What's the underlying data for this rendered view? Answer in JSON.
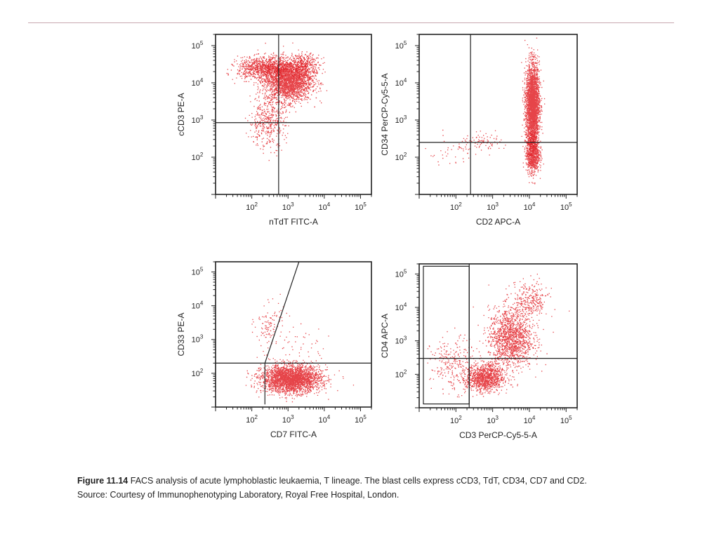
{
  "caption": {
    "label": "Figure 11.14",
    "text": "FACS analysis of acute lymphoblastic leukaemia, T lineage. The blast cells express cCD3, TdT, CD34, CD7 and CD2.",
    "source": "Source: Courtesy of Immunophenotyping Laboratory, Royal Free Hospital, London."
  },
  "colors": {
    "events": "#e0151b",
    "gate": "#222222",
    "frame": "#222222"
  },
  "chart_data": [
    {
      "type": "scatter",
      "xlabel": "nTdT FITC-A",
      "ylabel": "cCD3 PE-A",
      "xscale": "log",
      "yscale": "log",
      "xlim": [
        10,
        200000
      ],
      "ylim": [
        10,
        200000
      ],
      "xticks": [
        {
          "v": 100,
          "e": "2"
        },
        {
          "v": 1000,
          "e": "3"
        },
        {
          "v": 10000,
          "e": "4"
        },
        {
          "v": 100000,
          "e": "5"
        }
      ],
      "yticks": [
        {
          "v": 100,
          "e": "2"
        },
        {
          "v": 1000,
          "e": "3"
        },
        {
          "v": 10000,
          "e": "4"
        },
        {
          "v": 100000,
          "e": "5"
        }
      ],
      "gates": [
        {
          "type": "vline",
          "x": 550
        },
        {
          "type": "hline",
          "y": 850
        }
      ],
      "clusters": [
        {
          "x": 1000,
          "y": 12000,
          "sx": 0.32,
          "sy": 0.28,
          "n": 2600
        },
        {
          "x": 200,
          "y": 25000,
          "sx": 0.35,
          "sy": 0.15,
          "n": 900
        },
        {
          "x": 3000,
          "y": 30000,
          "sx": 0.2,
          "sy": 0.15,
          "n": 300
        },
        {
          "x": 260,
          "y": 900,
          "sx": 0.25,
          "sy": 0.35,
          "n": 400
        }
      ]
    },
    {
      "type": "scatter",
      "xlabel": "CD2 APC-A",
      "ylabel": "CD34 PerCP-Cy5-5-A",
      "xscale": "log",
      "yscale": "log",
      "xlim": [
        10,
        200000
      ],
      "ylim": [
        10,
        200000
      ],
      "xticks": [
        {
          "v": 100,
          "e": "2"
        },
        {
          "v": 1000,
          "e": "3"
        },
        {
          "v": 10000,
          "e": "4"
        },
        {
          "v": 100000,
          "e": "5"
        }
      ],
      "yticks": [
        {
          "v": 100,
          "e": "2"
        },
        {
          "v": 1000,
          "e": "3"
        },
        {
          "v": 10000,
          "e": "4"
        },
        {
          "v": 100000,
          "e": "5"
        }
      ],
      "gates": [
        {
          "type": "vline",
          "x": 250
        },
        {
          "type": "hline",
          "y": 250
        }
      ],
      "clusters": [
        {
          "x": 12000,
          "y": 2500,
          "sx": 0.09,
          "sy": 0.55,
          "n": 3000
        },
        {
          "x": 12000,
          "y": 120,
          "sx": 0.09,
          "sy": 0.25,
          "n": 800
        },
        {
          "x": 600,
          "y": 250,
          "sx": 0.35,
          "sy": 0.12,
          "n": 90
        },
        {
          "x": 60,
          "y": 120,
          "sx": 0.35,
          "sy": 0.2,
          "n": 30
        }
      ]
    },
    {
      "type": "scatter",
      "xlabel": "CD7 FITC-A",
      "ylabel": "CD33 PE-A",
      "xscale": "log",
      "yscale": "log",
      "xlim": [
        10,
        200000
      ],
      "ylim": [
        10,
        200000
      ],
      "xticks": [
        {
          "v": 100,
          "e": "2"
        },
        {
          "v": 1000,
          "e": "3"
        },
        {
          "v": 10000,
          "e": "4"
        },
        {
          "v": 100000,
          "e": "5"
        }
      ],
      "yticks": [
        {
          "v": 100,
          "e": "2"
        },
        {
          "v": 1000,
          "e": "3"
        },
        {
          "v": 10000,
          "e": "4"
        },
        {
          "v": 100000,
          "e": "5"
        }
      ],
      "gates": [
        {
          "type": "hline",
          "y": 200
        },
        {
          "type": "polyline",
          "points": [
            [
              230,
              12
            ],
            [
              230,
              200
            ],
            [
              2000,
              200000
            ]
          ]
        }
      ],
      "clusters": [
        {
          "x": 1200,
          "y": 70,
          "sx": 0.4,
          "sy": 0.2,
          "n": 2800
        },
        {
          "x": 300,
          "y": 2500,
          "sx": 0.2,
          "sy": 0.35,
          "n": 110
        },
        {
          "x": 2000,
          "y": 700,
          "sx": 0.4,
          "sy": 0.3,
          "n": 40
        }
      ]
    },
    {
      "type": "scatter",
      "xlabel": "CD3 PerCP-Cy5-5-A",
      "ylabel": "CD4 APC-A",
      "xscale": "log",
      "yscale": "log",
      "xlim": [
        10,
        200000
      ],
      "ylim": [
        10,
        200000
      ],
      "xticks": [
        {
          "v": 100,
          "e": "2"
        },
        {
          "v": 1000,
          "e": "3"
        },
        {
          "v": 10000,
          "e": "4"
        },
        {
          "v": 100000,
          "e": "5"
        }
      ],
      "yticks": [
        {
          "v": 100,
          "e": "2"
        },
        {
          "v": 1000,
          "e": "3"
        },
        {
          "v": 10000,
          "e": "4"
        },
        {
          "v": 100000,
          "e": "5"
        }
      ],
      "gates": [
        {
          "type": "vline",
          "x": 230
        },
        {
          "type": "hline",
          "y": 300
        },
        {
          "type": "rect",
          "x0": 13,
          "x1": 230,
          "y0": 13,
          "y1": 170000
        }
      ],
      "clusters": [
        {
          "x": 600,
          "y": 80,
          "sx": 0.25,
          "sy": 0.2,
          "n": 1100
        },
        {
          "x": 3000,
          "y": 1200,
          "sx": 0.3,
          "sy": 0.45,
          "n": 1400
        },
        {
          "x": 10000,
          "y": 15000,
          "sx": 0.25,
          "sy": 0.3,
          "n": 300
        },
        {
          "x": 80,
          "y": 200,
          "sx": 0.3,
          "sy": 0.4,
          "n": 250
        }
      ]
    }
  ]
}
